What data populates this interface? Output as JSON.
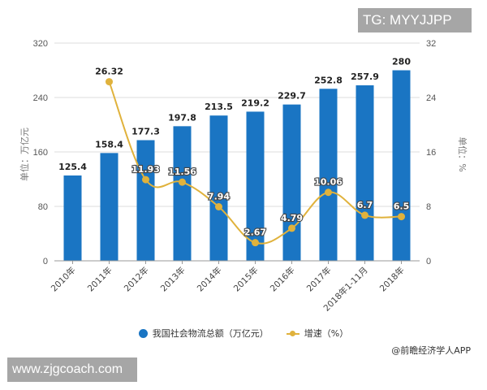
{
  "watermarks": {
    "top": "TG: MYYJJPP",
    "bottom": "www.zjgcoach.com"
  },
  "source": "@前瞻经济学人APP",
  "colors": {
    "bar": "#1a75c3",
    "line": "#e0b23c",
    "grid": "#dddddd",
    "axis": "#999999"
  },
  "legend": {
    "bar_label": "我国社会物流总额（万亿元）",
    "line_label": "增速（%）"
  },
  "chart_data": {
    "type": "bar+line",
    "categories": [
      "2010年",
      "2011年",
      "2012年",
      "2013年",
      "2014年",
      "2015年",
      "2016年",
      "2017年",
      "2018年1-11月",
      "2018年"
    ],
    "series": [
      {
        "name": "我国社会物流总额（万亿元）",
        "type": "bar",
        "axis": "left",
        "values": [
          125.4,
          158.4,
          177.3,
          197.8,
          213.5,
          219.2,
          229.7,
          252.8,
          257.9,
          280
        ]
      },
      {
        "name": "增速（%）",
        "type": "line",
        "axis": "right",
        "values": [
          null,
          26.32,
          11.93,
          11.56,
          7.94,
          2.67,
          4.79,
          10.06,
          6.7,
          6.5
        ]
      }
    ],
    "ylabel_left": "单位：万亿元",
    "ylabel_right": "单位：%",
    "ylim_left": [
      0,
      320
    ],
    "yticks_left": [
      0,
      80,
      160,
      240,
      320
    ],
    "ylim_right": [
      0,
      32
    ],
    "yticks_right": [
      0,
      8,
      16,
      24,
      32
    ],
    "grid": true,
    "legend_position": "bottom"
  }
}
